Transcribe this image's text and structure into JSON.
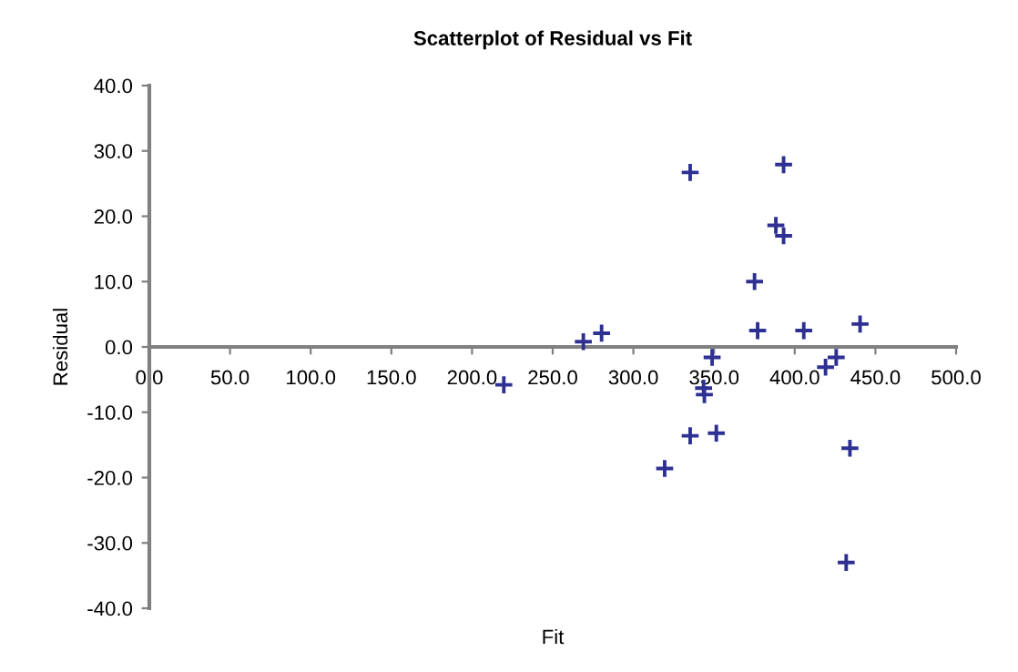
{
  "chart_data": {
    "type": "scatter",
    "title": "Scatterplot of Residual vs Fit",
    "xlabel": "Fit",
    "ylabel": "Residual",
    "x": [
      335.2,
      393.1,
      388.3,
      393.1,
      375.1,
      377.0,
      405.6,
      440.5,
      269.0,
      280.3,
      348.8,
      425.7,
      419.1,
      219.7,
      343.5,
      344.0,
      335.2,
      351.4,
      434.2,
      319.4,
      431.9
    ],
    "values": [
      26.7,
      27.9,
      18.6,
      17.0,
      10.0,
      2.5,
      2.5,
      3.5,
      0.8,
      2.1,
      -1.6,
      -1.6,
      -3.1,
      -5.8,
      -6.3,
      -7.3,
      -13.6,
      -13.2,
      -15.5,
      -18.6,
      -33.0
    ],
    "color": "#2e3192",
    "marker": "cross",
    "grid": false,
    "xlim": [
      0,
      500
    ],
    "xticks": [
      {
        "value": 0,
        "label": "0.0"
      },
      {
        "value": 50,
        "label": "50.0"
      },
      {
        "value": 100,
        "label": "100.0"
      },
      {
        "value": 150,
        "label": "150.0"
      },
      {
        "value": 200,
        "label": "200.0"
      },
      {
        "value": 250,
        "label": "250.0"
      },
      {
        "value": 300,
        "label": "300.0"
      },
      {
        "value": 350,
        "label": "350.0"
      },
      {
        "value": 400,
        "label": "400.0"
      },
      {
        "value": 450,
        "label": "450.0"
      },
      {
        "value": 500,
        "label": "500.0"
      }
    ],
    "ylim": [
      -40,
      40
    ],
    "yticks": [
      {
        "value": -40,
        "label": "-40.0"
      },
      {
        "value": -30,
        "label": "-30.0"
      },
      {
        "value": -20,
        "label": "-20.0"
      },
      {
        "value": -10,
        "label": "-10.0"
      },
      {
        "value": 0,
        "label": "0.0"
      },
      {
        "value": 10,
        "label": "10.0"
      },
      {
        "value": 20,
        "label": "20.0"
      },
      {
        "value": 30,
        "label": "30.0"
      },
      {
        "value": 40,
        "label": "40.0"
      }
    ]
  }
}
